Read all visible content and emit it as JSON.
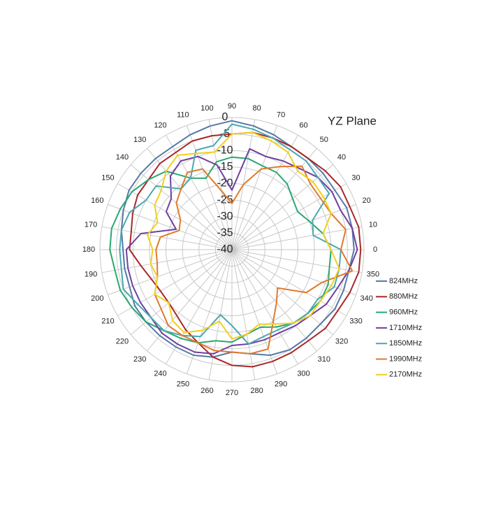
{
  "chart_data": {
    "type": "radar",
    "title": "YZ  Plane",
    "categories": [
      "0",
      "10",
      "20",
      "30",
      "40",
      "50",
      "60",
      "70",
      "80",
      "90",
      "100",
      "110",
      "120",
      "130",
      "140",
      "150",
      "160",
      "170",
      "180",
      "190",
      "200",
      "210",
      "220",
      "230",
      "240",
      "250",
      "260",
      "270",
      "280",
      "290",
      "300",
      "310",
      "320",
      "330",
      "340",
      "350"
    ],
    "rlim": [
      -40,
      0
    ],
    "rticks": [
      -40,
      -35,
      -30,
      -25,
      -20,
      -15,
      -10,
      -5,
      0
    ],
    "grid": true,
    "legend": "right",
    "series": [
      {
        "name": "824MHz",
        "color": "#5578a8",
        "values": [
          -3,
          -3,
          -3,
          -4,
          -4,
          -4,
          -4,
          -3,
          -2,
          -1,
          -2,
          -3,
          -4,
          -4,
          -4,
          -4,
          -5,
          -6,
          -7,
          -7,
          -7,
          -6,
          -6,
          -6,
          -6,
          -6,
          -7,
          -9,
          -8,
          -6,
          -5,
          -5,
          -5,
          -4,
          -4,
          -4
        ]
      },
      {
        "name": "880MHz",
        "color": "#a82828",
        "values": [
          -1,
          -1,
          -2,
          -2,
          -3,
          -4,
          -4,
          -4,
          -4,
          -5,
          -5,
          -5,
          -6,
          -6,
          -7,
          -7,
          -8,
          -9,
          -9,
          -12,
          -14,
          -15,
          -15,
          -14,
          -12,
          -10,
          -7,
          -5,
          -4,
          -4,
          -4,
          -4,
          -3,
          -3,
          -2,
          -1
        ]
      },
      {
        "name": "960MHz",
        "color": "#2aa872",
        "values": [
          -10,
          -12,
          -15,
          -17,
          -16,
          -14,
          -13,
          -13,
          -12,
          -12,
          -13,
          -17,
          -15,
          -9,
          -7,
          -5,
          -4,
          -3,
          -3,
          -4,
          -4,
          -5,
          -6,
          -8,
          -9,
          -10,
          -12,
          -12,
          -14,
          -15,
          -13,
          -11,
          -10,
          -9,
          -9,
          -10
        ]
      },
      {
        "name": "1710MHz",
        "color": "#7040a0",
        "values": [
          -2,
          -3,
          -5,
          -5,
          -6,
          -8,
          -9,
          -10,
          -9,
          -22,
          -14,
          -10,
          -9,
          -11,
          -16,
          -17,
          -22,
          -12,
          -8,
          -8,
          -8,
          -8,
          -8,
          -7,
          -7,
          -7,
          -8,
          -11,
          -11,
          -11,
          -11,
          -10,
          -9,
          -7,
          -6,
          -4
        ]
      },
      {
        "name": "1850MHz",
        "color": "#4aa8b2",
        "values": [
          -7,
          -15,
          -14,
          -6,
          -6,
          -5,
          -5,
          -4,
          -3,
          -2,
          -8,
          -8,
          -15,
          -16,
          -10,
          -10,
          -7,
          -6,
          -6,
          -6,
          -5,
          -7,
          -8,
          -8,
          -10,
          -12,
          -20,
          -17,
          -11,
          -12,
          -12,
          -11,
          -10,
          -10,
          -7,
          -7
        ]
      },
      {
        "name": "1990MHz",
        "color": "#e07a2c",
        "values": [
          -7,
          -5,
          -8,
          -9,
          -9,
          -7,
          -11,
          -14,
          -20,
          -26,
          -22,
          -14,
          -13,
          -16,
          -18,
          -22,
          -23,
          -18,
          -17,
          -17,
          -16,
          -13,
          -12,
          -10,
          -10,
          -10,
          -9,
          -9,
          -8,
          -8,
          -15,
          -19,
          -22,
          -14,
          -11,
          -3
        ]
      },
      {
        "name": "2170MHz",
        "color": "#f2cf1e",
        "values": [
          -10,
          -12,
          -8,
          -8,
          -8,
          -9,
          -6,
          -5,
          -4,
          -5,
          -10,
          -9,
          -7,
          -9,
          -12,
          -13,
          -16,
          -14,
          -16,
          -15,
          -16,
          -13,
          -15,
          -12,
          -11,
          -14,
          -18,
          -13,
          -14,
          -16,
          -14,
          -11,
          -9,
          -9,
          -8,
          -7
        ]
      }
    ]
  }
}
